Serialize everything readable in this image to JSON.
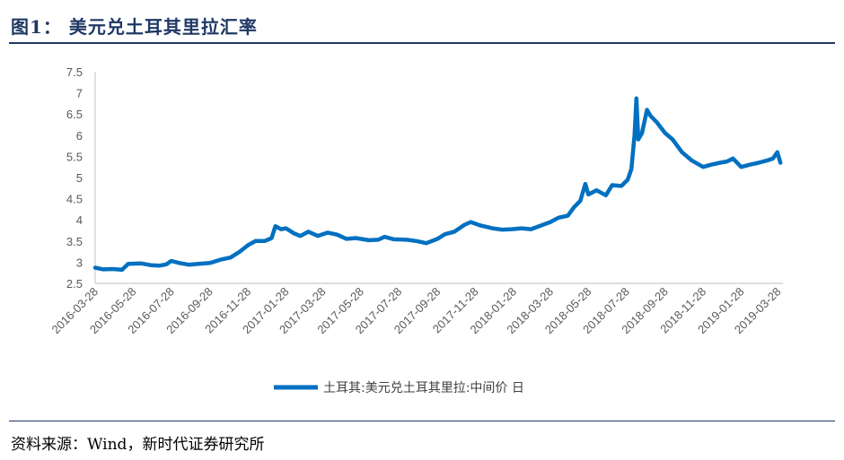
{
  "header": {
    "title": "图1：  美元兑土耳其里拉汇率"
  },
  "footer": {
    "source": "资料来源：Wind，新时代证券研究所"
  },
  "chart_data": {
    "type": "line",
    "y_ticks": [
      "7.5",
      "7",
      "6.5",
      "6",
      "5.5",
      "5",
      "4.5",
      "4",
      "3.5",
      "3",
      "2.5"
    ],
    "ylim": [
      2.5,
      7.5
    ],
    "x_ticks": [
      "2016-03-28",
      "2016-05-28",
      "2016-07-28",
      "2016-09-28",
      "2016-11-28",
      "2017-01-28",
      "2017-03-28",
      "2017-05-28",
      "2017-07-28",
      "2017-09-28",
      "2017-11-28",
      "2018-01-28",
      "2018-03-28",
      "2018-05-28",
      "2018-07-28",
      "2018-09-28",
      "2018-11-28",
      "2019-01-28",
      "2019-03-28"
    ],
    "xlim": [
      "2016-03-28",
      "2019-04-05"
    ],
    "grid": false,
    "legend_position": "bottom",
    "color": "#0070c0",
    "series": [
      {
        "name": "土耳其:美元兑土耳其里拉:中间价 日",
        "points": [
          [
            "2016-03-28",
            2.87
          ],
          [
            "2016-04-10",
            2.83
          ],
          [
            "2016-04-25",
            2.84
          ],
          [
            "2016-05-10",
            2.82
          ],
          [
            "2016-05-20",
            2.96
          ],
          [
            "2016-06-10",
            2.97
          ],
          [
            "2016-06-25",
            2.93
          ],
          [
            "2016-07-10",
            2.92
          ],
          [
            "2016-07-20",
            2.95
          ],
          [
            "2016-07-28",
            3.03
          ],
          [
            "2016-08-10",
            2.98
          ],
          [
            "2016-08-25",
            2.94
          ],
          [
            "2016-09-10",
            2.96
          ],
          [
            "2016-09-28",
            2.98
          ],
          [
            "2016-10-15",
            3.06
          ],
          [
            "2016-10-31",
            3.11
          ],
          [
            "2016-11-15",
            3.25
          ],
          [
            "2016-11-28",
            3.4
          ],
          [
            "2016-12-10",
            3.5
          ],
          [
            "2016-12-25",
            3.5
          ],
          [
            "2017-01-05",
            3.57
          ],
          [
            "2017-01-11",
            3.85
          ],
          [
            "2017-01-20",
            3.78
          ],
          [
            "2017-01-28",
            3.8
          ],
          [
            "2017-02-10",
            3.68
          ],
          [
            "2017-02-20",
            3.62
          ],
          [
            "2017-03-05",
            3.72
          ],
          [
            "2017-03-20",
            3.62
          ],
          [
            "2017-04-05",
            3.7
          ],
          [
            "2017-04-20",
            3.65
          ],
          [
            "2017-05-05",
            3.55
          ],
          [
            "2017-05-20",
            3.57
          ],
          [
            "2017-06-10",
            3.52
          ],
          [
            "2017-06-25",
            3.53
          ],
          [
            "2017-07-05",
            3.6
          ],
          [
            "2017-07-20",
            3.54
          ],
          [
            "2017-08-10",
            3.53
          ],
          [
            "2017-08-25",
            3.5
          ],
          [
            "2017-09-10",
            3.45
          ],
          [
            "2017-09-28",
            3.55
          ],
          [
            "2017-10-10",
            3.66
          ],
          [
            "2017-10-25",
            3.72
          ],
          [
            "2017-11-10",
            3.88
          ],
          [
            "2017-11-20",
            3.95
          ],
          [
            "2017-12-05",
            3.87
          ],
          [
            "2017-12-25",
            3.8
          ],
          [
            "2018-01-10",
            3.77
          ],
          [
            "2018-01-25",
            3.78
          ],
          [
            "2018-02-10",
            3.8
          ],
          [
            "2018-02-25",
            3.78
          ],
          [
            "2018-03-10",
            3.85
          ],
          [
            "2018-03-28",
            3.95
          ],
          [
            "2018-04-10",
            4.05
          ],
          [
            "2018-04-25",
            4.1
          ],
          [
            "2018-05-05",
            4.3
          ],
          [
            "2018-05-15",
            4.45
          ],
          [
            "2018-05-23",
            4.85
          ],
          [
            "2018-05-28",
            4.6
          ],
          [
            "2018-06-10",
            4.7
          ],
          [
            "2018-06-25",
            4.58
          ],
          [
            "2018-07-05",
            4.82
          ],
          [
            "2018-07-20",
            4.8
          ],
          [
            "2018-07-30",
            4.95
          ],
          [
            "2018-08-05",
            5.2
          ],
          [
            "2018-08-10",
            6.0
          ],
          [
            "2018-08-13",
            6.87
          ],
          [
            "2018-08-16",
            5.9
          ],
          [
            "2018-08-22",
            6.05
          ],
          [
            "2018-08-30",
            6.6
          ],
          [
            "2018-09-05",
            6.45
          ],
          [
            "2018-09-15",
            6.3
          ],
          [
            "2018-09-28",
            6.05
          ],
          [
            "2018-10-10",
            5.9
          ],
          [
            "2018-10-25",
            5.6
          ],
          [
            "2018-11-10",
            5.4
          ],
          [
            "2018-11-28",
            5.25
          ],
          [
            "2018-12-10",
            5.3
          ],
          [
            "2018-12-25",
            5.35
          ],
          [
            "2019-01-05",
            5.38
          ],
          [
            "2019-01-15",
            5.45
          ],
          [
            "2019-01-28",
            5.25
          ],
          [
            "2019-02-10",
            5.3
          ],
          [
            "2019-02-25",
            5.35
          ],
          [
            "2019-03-10",
            5.4
          ],
          [
            "2019-03-20",
            5.45
          ],
          [
            "2019-03-27",
            5.6
          ],
          [
            "2019-04-01",
            5.35
          ]
        ]
      }
    ]
  }
}
